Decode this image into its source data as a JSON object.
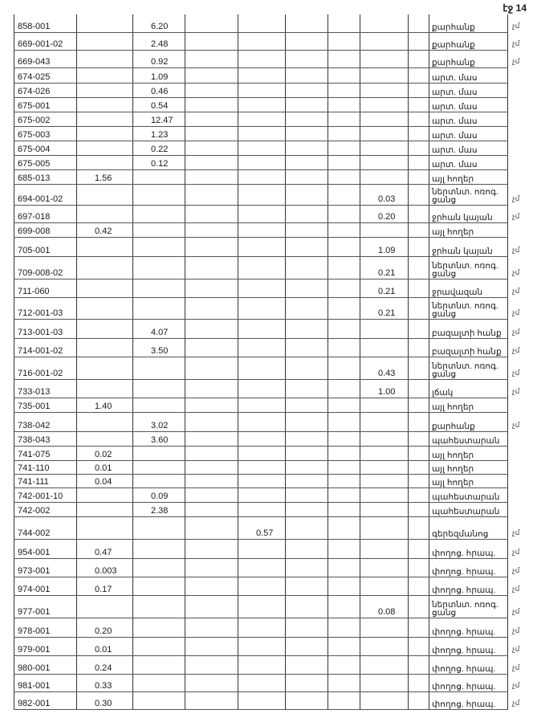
{
  "page_label": "էջ 14",
  "rows": [
    {
      "code": "858-001",
      "c": [
        "",
        "6.20",
        "",
        "",
        "",
        "",
        "",
        ""
      ],
      "type": "քարհանք",
      "mark": "չմ"
    },
    {
      "code": "669-001-02",
      "c": [
        "",
        "2.48",
        "",
        "",
        "",
        "",
        "",
        ""
      ],
      "type": "քարհանք",
      "mark": "չմ"
    },
    {
      "code": "669-043",
      "c": [
        "",
        "0.92",
        "",
        "",
        "",
        "",
        "",
        ""
      ],
      "type": "քարհանք",
      "mark": "չմ"
    },
    {
      "code": "674-025",
      "c": [
        "",
        "1.09",
        "",
        "",
        "",
        "",
        "",
        ""
      ],
      "type": "արտ. մաս",
      "mark": ""
    },
    {
      "code": "674-026",
      "c": [
        "",
        "0.46",
        "",
        "",
        "",
        "",
        "",
        ""
      ],
      "type": "արտ. մաս",
      "mark": ""
    },
    {
      "code": "675-001",
      "c": [
        "",
        "0.54",
        "",
        "",
        "",
        "",
        "",
        ""
      ],
      "type": "արտ. մաս",
      "mark": ""
    },
    {
      "code": "675-002",
      "c": [
        "",
        "12.47",
        "",
        "",
        "",
        "",
        "",
        ""
      ],
      "type": "արտ. մաս",
      "mark": ""
    },
    {
      "code": "675-003",
      "c": [
        "",
        "1.23",
        "",
        "",
        "",
        "",
        "",
        ""
      ],
      "type": "արտ. մաս",
      "mark": ""
    },
    {
      "code": "675-004",
      "c": [
        "",
        "0.22",
        "",
        "",
        "",
        "",
        "",
        ""
      ],
      "type": "արտ. մաս",
      "mark": ""
    },
    {
      "code": "675-005",
      "c": [
        "",
        "0.12",
        "",
        "",
        "",
        "",
        "",
        ""
      ],
      "type": "արտ. մաս",
      "mark": ""
    },
    {
      "code": "685-013",
      "c": [
        "1.56",
        "",
        "",
        "",
        "",
        "",
        "",
        ""
      ],
      "type": "այլ հողեր",
      "mark": ""
    },
    {
      "code": "694-001-02",
      "c": [
        "",
        "",
        "",
        "",
        "",
        "",
        "0.03",
        ""
      ],
      "type": "ներտնտ. ոռոգ. ցանց",
      "mark": "չմ"
    },
    {
      "code": "697-018",
      "c": [
        "",
        "",
        "",
        "",
        "",
        "",
        "0.20",
        ""
      ],
      "type": "ջրհան կայան",
      "mark": "չմ"
    },
    {
      "code": "699-008",
      "c": [
        "0.42",
        "",
        "",
        "",
        "",
        "",
        "",
        ""
      ],
      "type": "այլ հողեր",
      "mark": ""
    },
    {
      "code": "705-001",
      "c": [
        "",
        "",
        "",
        "",
        "",
        "",
        "1.09",
        ""
      ],
      "type": "ջրհան կայան",
      "mark": "չմ"
    },
    {
      "code": "709-008-02",
      "c": [
        "",
        "",
        "",
        "",
        "",
        "",
        "0.21",
        ""
      ],
      "type": "ներտնտ. ոռոգ. ցանց",
      "mark": "չմ"
    },
    {
      "code": "711-060",
      "c": [
        "",
        "",
        "",
        "",
        "",
        "",
        "0.21",
        ""
      ],
      "type": "ջրավազան",
      "mark": "չմ"
    },
    {
      "code": "712-001-03",
      "c": [
        "",
        "",
        "",
        "",
        "",
        "",
        "0.21",
        ""
      ],
      "type": "ներտնտ. ոռոգ. ցանց",
      "mark": "չմ"
    },
    {
      "code": "713-001-03",
      "c": [
        "",
        "4.07",
        "",
        "",
        "",
        "",
        "",
        ""
      ],
      "type": "բազալտի հանք",
      "mark": "չմ"
    },
    {
      "code": "714-001-02",
      "c": [
        "",
        "3.50",
        "",
        "",
        "",
        "",
        "",
        ""
      ],
      "type": "բազալտի հանք",
      "mark": "չմ"
    },
    {
      "code": "716-001-02",
      "c": [
        "",
        "",
        "",
        "",
        "",
        "",
        "0.43",
        ""
      ],
      "type": "ներտնտ. ոռոգ. ցանց",
      "mark": "չմ"
    },
    {
      "code": "733-013",
      "c": [
        "",
        "",
        "",
        "",
        "",
        "",
        "1.00",
        ""
      ],
      "type": "լճակ",
      "mark": "չմ"
    },
    {
      "code": "735-001",
      "c": [
        "1.40",
        "",
        "",
        "",
        "",
        "",
        "",
        ""
      ],
      "type": "այլ հողեր",
      "mark": ""
    },
    {
      "code": "738-042",
      "c": [
        "",
        "3.02",
        "",
        "",
        "",
        "",
        "",
        ""
      ],
      "type": "քարհանք",
      "mark": "չմ"
    },
    {
      "code": "738-043",
      "c": [
        "",
        "3.60",
        "",
        "",
        "",
        "",
        "",
        ""
      ],
      "type": "պահեստարան",
      "mark": ""
    },
    {
      "code": "741-075",
      "c": [
        "0.02",
        "",
        "",
        "",
        "",
        "",
        "",
        ""
      ],
      "type": "այլ հողեր",
      "mark": ""
    },
    {
      "code": "741-110",
      "c": [
        "0.01",
        "",
        "",
        "",
        "",
        "",
        "",
        ""
      ],
      "type": "այլ հողեր",
      "mark": ""
    },
    {
      "code": "741-111",
      "c": [
        "0.04",
        "",
        "",
        "",
        "",
        "",
        "",
        ""
      ],
      "type": "այլ հողեր",
      "mark": ""
    },
    {
      "code": "742-001-10",
      "c": [
        "",
        "0.09",
        "",
        "",
        "",
        "",
        "",
        ""
      ],
      "type": "պահեստարան",
      "mark": ""
    },
    {
      "code": "742-002",
      "c": [
        "",
        "2.38",
        "",
        "",
        "",
        "",
        "",
        ""
      ],
      "type": "պահեստարան",
      "mark": ""
    },
    {
      "code": "744-002",
      "c": [
        "",
        "",
        "",
        "0.57",
        "",
        "",
        "",
        ""
      ],
      "type": "գերեզմանոց",
      "mark": "չմ"
    },
    {
      "code": "954-001",
      "c": [
        "0.47",
        "",
        "",
        "",
        "",
        "",
        "",
        ""
      ],
      "type": "փողոց. հրապ.",
      "mark": "չմ"
    },
    {
      "code": "973-001",
      "c": [
        "0.003",
        "",
        "",
        "",
        "",
        "",
        "",
        ""
      ],
      "type": "փողոց. հրապ.",
      "mark": "չմ"
    },
    {
      "code": "974-001",
      "c": [
        "0.17",
        "",
        "",
        "",
        "",
        "",
        "",
        ""
      ],
      "type": "փողոց. հրապ.",
      "mark": "չմ"
    },
    {
      "code": "977-001",
      "c": [
        "",
        "",
        "",
        "",
        "",
        "",
        "0.08",
        ""
      ],
      "type": "ներտնտ. ոռոգ. ցանց",
      "mark": "չմ"
    },
    {
      "code": "978-001",
      "c": [
        "0.20",
        "",
        "",
        "",
        "",
        "",
        "",
        ""
      ],
      "type": "փողոց. հրապ.",
      "mark": "չմ"
    },
    {
      "code": "979-001",
      "c": [
        "0.01",
        "",
        "",
        "",
        "",
        "",
        "",
        ""
      ],
      "type": "փողոց. հրապ.",
      "mark": "չմ"
    },
    {
      "code": "980-001",
      "c": [
        "0.24",
        "",
        "",
        "",
        "",
        "",
        "",
        ""
      ],
      "type": "փողոց. հրապ.",
      "mark": "չմ"
    },
    {
      "code": "981-001",
      "c": [
        "0.33",
        "",
        "",
        "",
        "",
        "",
        "",
        ""
      ],
      "type": "փողոց. հրապ.",
      "mark": "չմ"
    },
    {
      "code": "982-001",
      "c": [
        "0.30",
        "",
        "",
        "",
        "",
        "",
        "",
        ""
      ],
      "type": "փողոց. հրապ.",
      "mark": "չմ"
    }
  ]
}
